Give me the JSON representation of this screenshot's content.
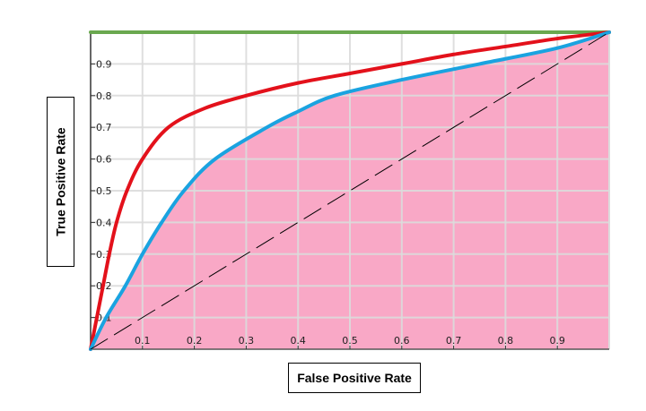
{
  "chart_data": {
    "type": "line",
    "title": "",
    "xlabel": "False Positive Rate",
    "ylabel": "True Positive Rate",
    "xlim": [
      0,
      1
    ],
    "ylim": [
      0,
      1
    ],
    "grid": true,
    "xticks": [
      "0.1",
      "0.2",
      "0.3",
      "0.4",
      "0.5",
      "0.6",
      "0.7",
      "0.8",
      "0.9"
    ],
    "yticks": [
      "0.1",
      "0.2",
      "0.3",
      "0.4",
      "0.5",
      "0.6",
      "0.7",
      "0.8",
      "0.9"
    ],
    "series": [
      {
        "color": "#6aa84f",
        "style": "solid",
        "x": [
          0,
          1
        ],
        "y": [
          1,
          1
        ]
      },
      {
        "color": "#e3111b",
        "style": "solid",
        "x": [
          0,
          0.012,
          0.024,
          0.036,
          0.05,
          0.07,
          0.1,
          0.15,
          0.22,
          0.3,
          0.4,
          0.5,
          0.6,
          0.7,
          0.8,
          0.9,
          1
        ],
        "y": [
          0,
          0.1,
          0.2,
          0.3,
          0.4,
          0.5,
          0.6,
          0.7,
          0.76,
          0.8,
          0.84,
          0.87,
          0.9,
          0.93,
          0.955,
          0.98,
          1
        ]
      },
      {
        "color": "#1aa3e0",
        "style": "solid",
        "fill": "#f9a8c6",
        "x": [
          0,
          0.03,
          0.067,
          0.1,
          0.137,
          0.18,
          0.24,
          0.34,
          0.4,
          0.47,
          0.6,
          0.75,
          0.9,
          1
        ],
        "y": [
          0,
          0.1,
          0.2,
          0.3,
          0.4,
          0.5,
          0.6,
          0.7,
          0.75,
          0.8,
          0.85,
          0.9,
          0.95,
          1
        ]
      },
      {
        "color": "#000000",
        "style": "dashed",
        "x": [
          0,
          1
        ],
        "y": [
          0,
          1
        ]
      }
    ]
  }
}
